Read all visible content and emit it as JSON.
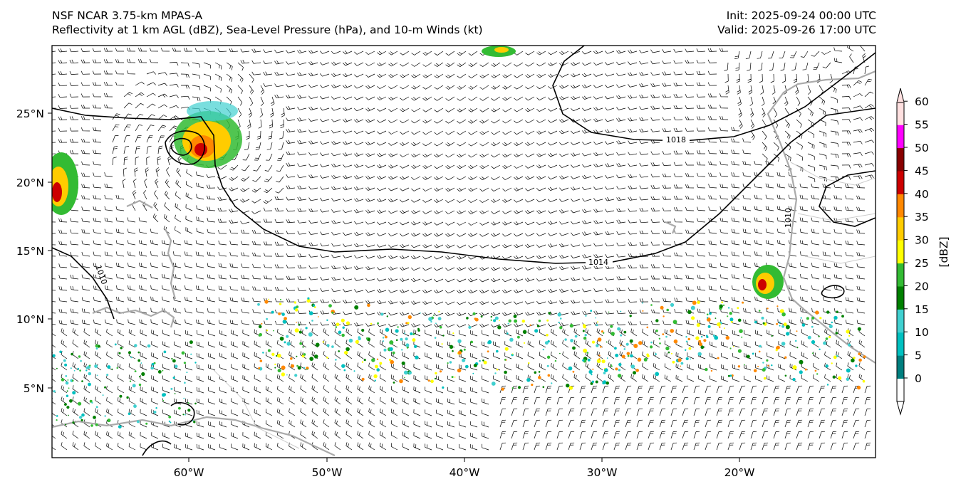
{
  "header": {
    "left_line1": "NSF NCAR 3.75-km MPAS-A",
    "left_line2": "Reflectivity at 1 km AGL (dBZ), Sea-Level Pressure (hPa), and 10-m Winds (kt)",
    "right_line1": "Init: 2025-09-24 00:00 UTC",
    "right_line2": "Valid: 2025-09-26 17:00 UTC"
  },
  "map": {
    "lon_ticks": [
      "60°W",
      "50°W",
      "40°W",
      "30°W",
      "20°W"
    ],
    "lat_ticks": [
      "25°N",
      "20°N",
      "15°N",
      "10°N",
      "5°N"
    ],
    "isobar_labels": [
      "1018",
      "1014",
      "1010",
      "1010"
    ]
  },
  "colorbar": {
    "label": "[dBZ]",
    "ticks": [
      "0",
      "5",
      "10",
      "15",
      "20",
      "25",
      "30",
      "35",
      "40",
      "45",
      "50",
      "55",
      "60"
    ],
    "colors": [
      "#ffffff",
      "#007f7f",
      "#00c0c0",
      "#40d0d0",
      "#008000",
      "#33bb33",
      "#ffff00",
      "#ffcc00",
      "#ff8800",
      "#cc0000",
      "#880000",
      "#ff00ff",
      "#ffe0e0"
    ]
  }
}
